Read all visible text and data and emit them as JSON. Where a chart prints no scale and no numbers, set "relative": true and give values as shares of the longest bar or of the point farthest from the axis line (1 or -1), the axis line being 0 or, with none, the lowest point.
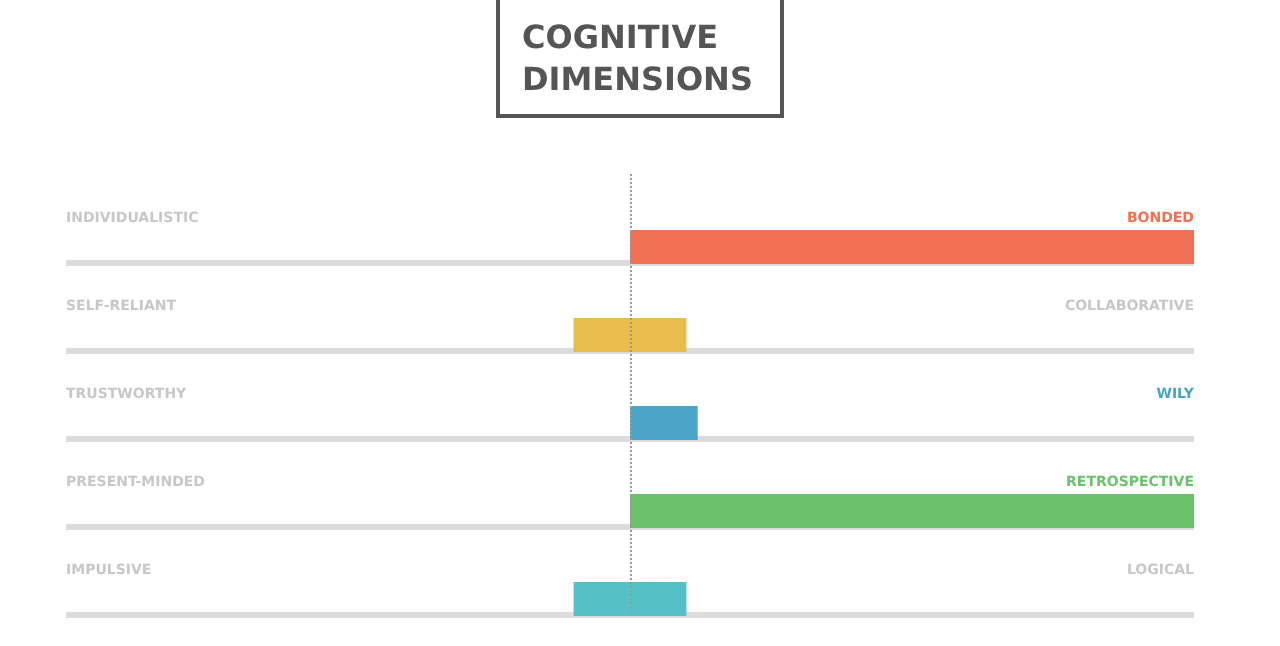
{
  "chart_data": {
    "type": "bar",
    "title": "COGNITIVE DIMENSIONS",
    "orientation": "horizontal",
    "relative": true,
    "grid": "y",
    "categories": [
      "INDIVIDUALISTIC",
      "SELF-RELIANT",
      "TRUSTWORTHY",
      "PRESENT-MINDED",
      "IMPULSIVE"
    ],
    "series": [
      {
        "colors": [
          "#f07055",
          "#e8bd4c",
          "#4ba3c7",
          "#6cc16c",
          "#55c0c6"
        ],
        "values": [
          1,
          0.1,
          0.12,
          1,
          0.1
        ]
      },
      {
        "colors": [
          null,
          "#e8bd4c",
          null,
          null,
          "#55c0c6"
        ],
        "values": [
          null,
          -0.1,
          null,
          null,
          -0.1
        ]
      }
    ],
    "annotations": [
      "BONDED",
      "COLLABORATIVE",
      "WILY",
      "RETROSPECTIVE",
      "LOGICAL"
    ],
    "ref_lines": [
      {
        "axis": "x",
        "value": 0,
        "label": null,
        "color": "#999999",
        "line_style": "dotted"
      }
    ]
  }
}
